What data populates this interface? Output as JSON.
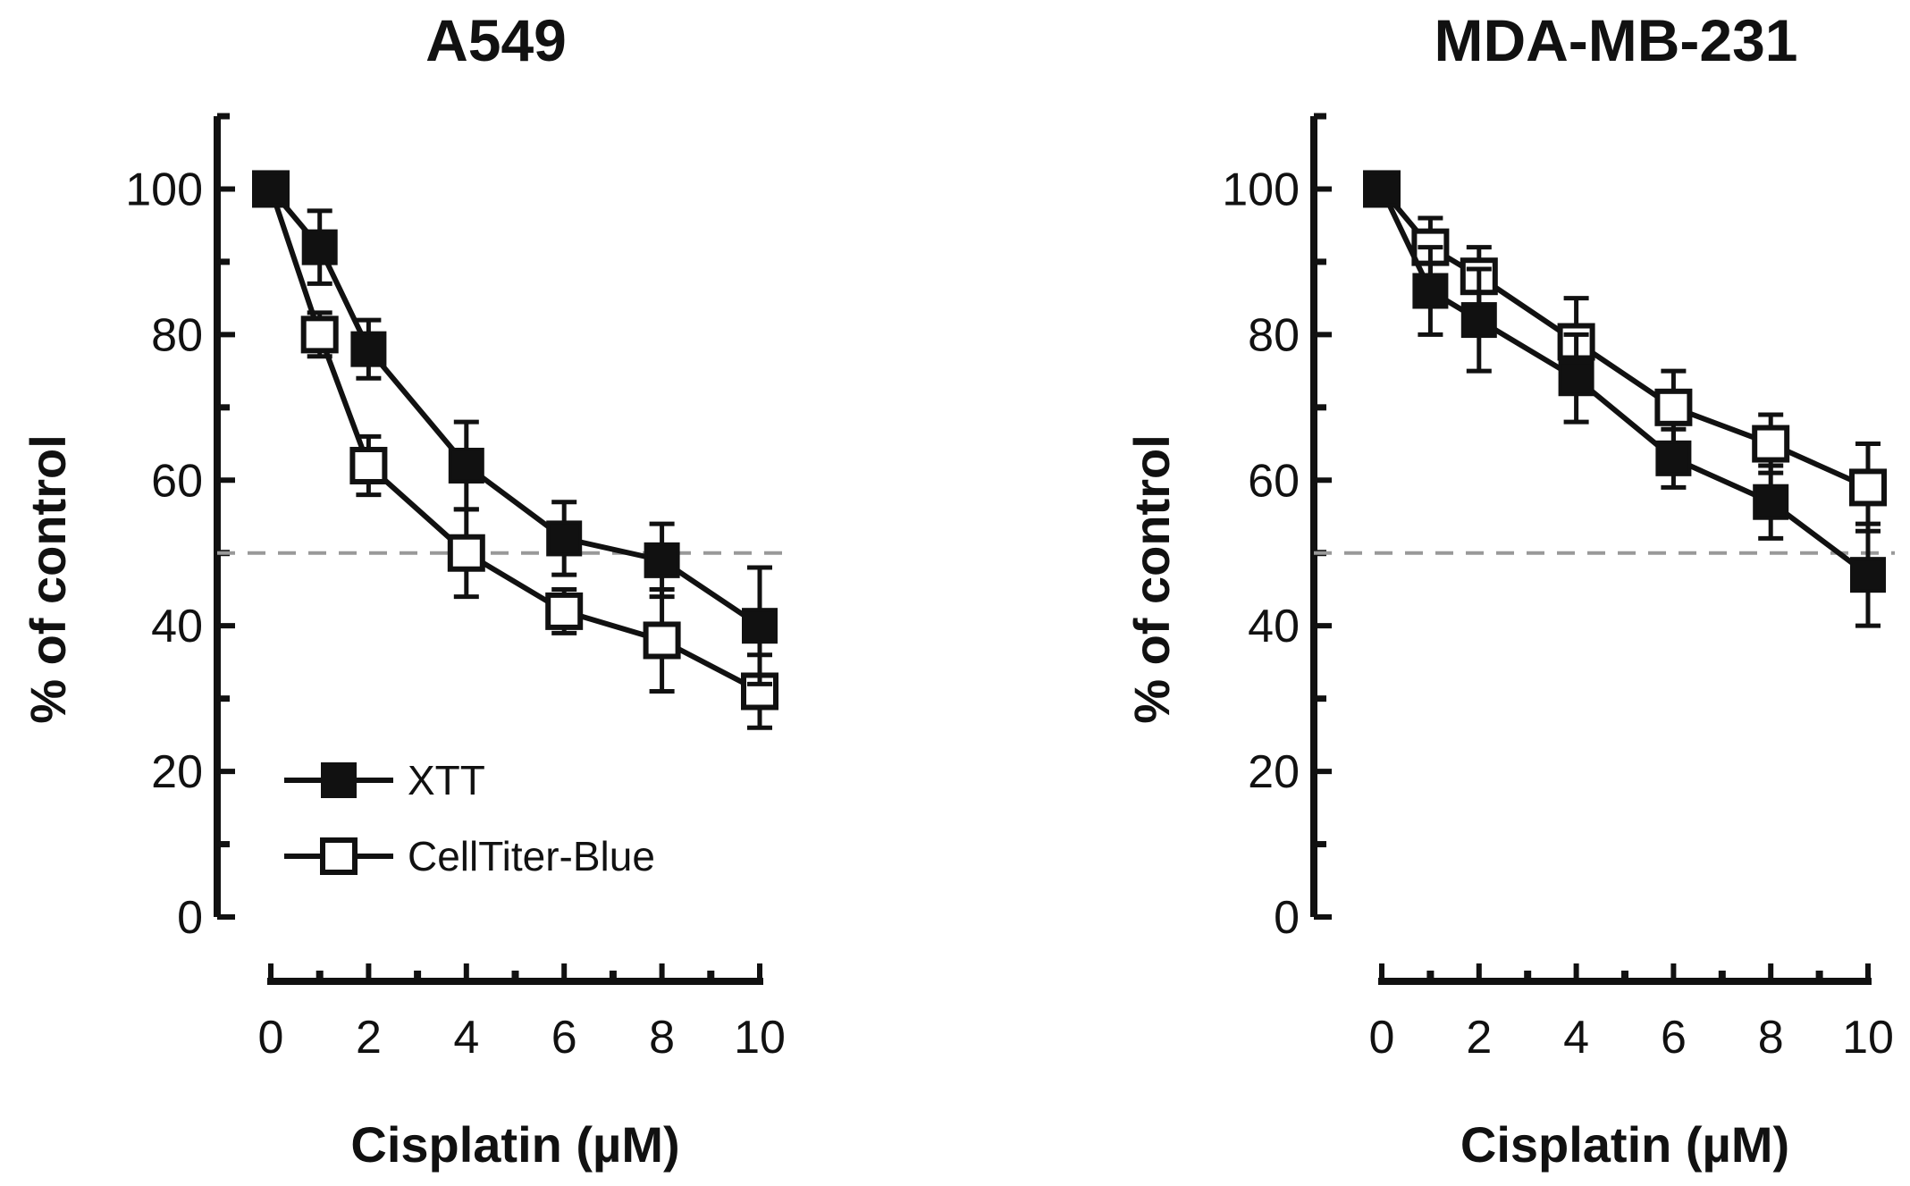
{
  "chart_data": [
    {
      "type": "line",
      "title": "A549",
      "xlabel": "Cisplatin (µM)",
      "ylabel": "% of control",
      "x": [
        0,
        1,
        2,
        4,
        6,
        8,
        10
      ],
      "xlim": [
        0,
        10
      ],
      "ylim": [
        0,
        110
      ],
      "xticks": [
        0,
        2,
        4,
        6,
        8,
        10
      ],
      "yticks": [
        0,
        20,
        40,
        60,
        80,
        100
      ],
      "reference_line": {
        "y": 50,
        "style": "dashed"
      },
      "legend": {
        "placement": "bottom-left"
      },
      "series": [
        {
          "name": "XTT",
          "marker": "filled-square",
          "values": [
            100,
            92,
            78,
            62,
            52,
            49,
            40
          ],
          "errors": [
            0,
            5,
            4,
            6,
            5,
            5,
            8
          ]
        },
        {
          "name": "CellTiter-Blue",
          "marker": "open-square",
          "values": [
            100,
            80,
            62,
            50,
            42,
            38,
            31
          ],
          "errors": [
            0,
            3,
            4,
            6,
            3,
            7,
            5
          ]
        }
      ]
    },
    {
      "type": "line",
      "title": "MDA-MB-231",
      "xlabel": "Cisplatin (µM)",
      "ylabel": "% of control",
      "x": [
        0,
        1,
        2,
        4,
        6,
        8,
        10
      ],
      "xlim": [
        0,
        10
      ],
      "ylim": [
        0,
        110
      ],
      "xticks": [
        0,
        2,
        4,
        6,
        8,
        10
      ],
      "yticks": [
        0,
        20,
        40,
        60,
        80,
        100
      ],
      "reference_line": {
        "y": 50,
        "style": "dashed"
      },
      "series": [
        {
          "name": "XTT",
          "marker": "filled-square",
          "values": [
            100,
            86,
            82,
            74,
            63,
            57,
            47
          ],
          "errors": [
            0,
            6,
            7,
            6,
            4,
            5,
            7
          ]
        },
        {
          "name": "CellTiter-Blue",
          "marker": "open-square",
          "values": [
            100,
            92,
            88,
            79,
            70,
            65,
            59
          ],
          "errors": [
            0,
            4,
            4,
            6,
            5,
            4,
            6
          ]
        }
      ]
    }
  ]
}
